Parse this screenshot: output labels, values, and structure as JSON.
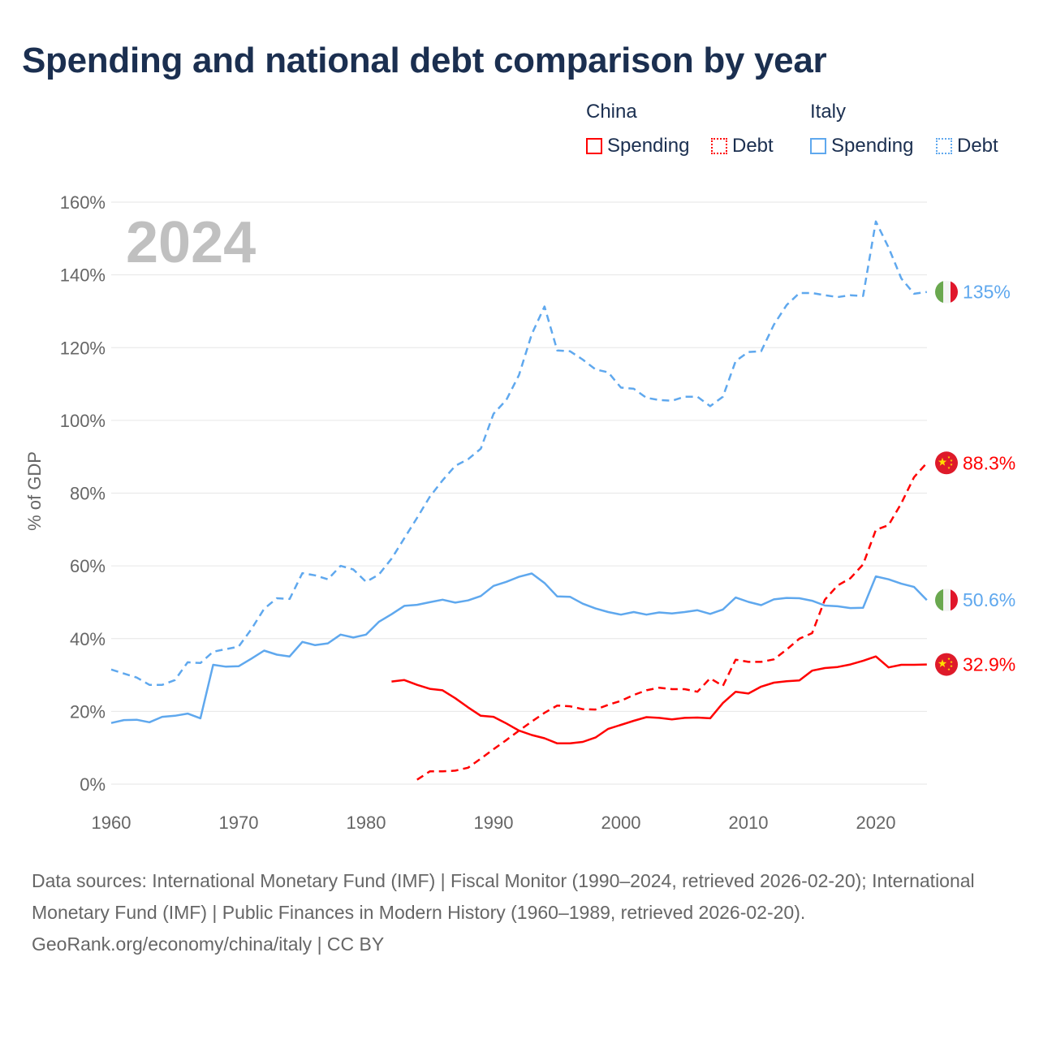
{
  "title": "Spending and national debt comparison by year",
  "legend": {
    "groups": [
      {
        "name": "China",
        "items": [
          "Spending",
          "Debt"
        ]
      },
      {
        "name": "Italy",
        "items": [
          "Spending",
          "Debt"
        ]
      }
    ]
  },
  "colors": {
    "china": "#ff0000",
    "italy": "#5fa8ee",
    "grid": "#e6e6e6",
    "axis_text": "#666666",
    "year_watermark": "#c0c0c0"
  },
  "chart_data": {
    "type": "line",
    "title": "Spending and national debt comparison by year",
    "xlabel": "",
    "ylabel": "% of GDP",
    "xlim": [
      1960,
      2024
    ],
    "ylim": [
      0,
      160
    ],
    "x_ticks": [
      1960,
      1970,
      1980,
      1990,
      2000,
      2010,
      2020
    ],
    "y_ticks": [
      "0%",
      "20%",
      "40%",
      "60%",
      "80%",
      "100%",
      "120%",
      "140%",
      "160%"
    ],
    "y_tick_values": [
      0,
      20,
      40,
      60,
      80,
      100,
      120,
      140,
      160
    ],
    "grid": true,
    "year_label": "2024",
    "series": [
      {
        "name": "China Spending",
        "country": "china",
        "style": "solid",
        "start": 1982,
        "end_label": "32.9%",
        "values": [
          28.2,
          28.6,
          27.3,
          26.2,
          25.8,
          23.6,
          21.1,
          18.8,
          18.5,
          16.7,
          14.7,
          13.5,
          12.6,
          11.2,
          11.2,
          11.6,
          12.8,
          15.2,
          16.3,
          17.4,
          18.4,
          18.2,
          17.8,
          18.2,
          18.3,
          18.1,
          22.3,
          25.4,
          24.9,
          26.8,
          27.9,
          28.3,
          28.5,
          31.2,
          31.9,
          32.2,
          32.9,
          33.9,
          35.1,
          32.1,
          32.8,
          32.8,
          32.9
        ]
      },
      {
        "name": "China Debt",
        "country": "china",
        "style": "dashed",
        "start": 1984,
        "end_label": "88.3%",
        "values": [
          1.2,
          3.5,
          3.5,
          3.7,
          4.5,
          7.0,
          9.6,
          12.1,
          14.7,
          17.2,
          19.6,
          21.6,
          21.4,
          20.6,
          20.5,
          21.8,
          22.9,
          24.5,
          25.8,
          26.5,
          26.1,
          26.1,
          25.4,
          29.1,
          27.0,
          34.2,
          33.6,
          33.6,
          34.3,
          37.0,
          40.0,
          41.5,
          50.7,
          54.6,
          56.6,
          60.4,
          69.9,
          71.2,
          77.2,
          84.4,
          88.3
        ]
      },
      {
        "name": "Italy Spending",
        "country": "italy",
        "style": "solid",
        "start": 1960,
        "end_label": "50.6%",
        "values": [
          16.8,
          17.6,
          17.7,
          17.0,
          18.5,
          18.8,
          19.4,
          18.1,
          32.8,
          32.3,
          32.4,
          34.5,
          36.7,
          35.6,
          35.1,
          39.1,
          38.2,
          38.7,
          41.1,
          40.3,
          41.1,
          44.6,
          46.7,
          49.0,
          49.3,
          50.0,
          50.7,
          49.9,
          50.5,
          51.7,
          54.5,
          55.6,
          57.0,
          57.9,
          55.3,
          51.6,
          51.5,
          49.6,
          48.3,
          47.3,
          46.6,
          47.3,
          46.6,
          47.2,
          46.9,
          47.3,
          47.8,
          46.8,
          48.0,
          51.3,
          50.1,
          49.2,
          50.8,
          51.2,
          51.1,
          50.4,
          49.1,
          48.9,
          48.4,
          48.5,
          57.1,
          56.3,
          55.1,
          54.2,
          50.6
        ]
      },
      {
        "name": "Italy Debt",
        "country": "italy",
        "style": "dashed",
        "start": 1960,
        "end_label": "135%",
        "values": [
          31.5,
          30.4,
          29.3,
          27.3,
          27.3,
          28.6,
          33.5,
          33.3,
          36.4,
          37.1,
          37.8,
          42.6,
          48.2,
          51.1,
          50.9,
          58.0,
          57.4,
          56.3,
          60.0,
          59.0,
          55.6,
          57.6,
          62.0,
          67.6,
          73.2,
          79.0,
          83.5,
          87.5,
          89.3,
          92.2,
          101.8,
          105.6,
          112.5,
          123.7,
          131.3,
          119.2,
          119.0,
          116.7,
          114.0,
          113.2,
          109.0,
          108.7,
          106.2,
          105.6,
          105.4,
          106.5,
          106.5,
          103.9,
          106.5,
          116.3,
          118.8,
          119.0,
          126.3,
          131.7,
          135.0,
          135.0,
          134.4,
          133.9,
          134.4,
          134.2,
          154.7,
          147.5,
          139.0,
          134.8,
          135.3
        ]
      }
    ]
  },
  "footer": {
    "sources": "Data sources: International Monetary Fund (IMF) | Fiscal Monitor (1990–2024, retrieved 2026-02-20); International Monetary Fund (IMF) | Public Finances in Modern History (1960–1989, retrieved 2026-02-20).",
    "credit": "GeoRank.org/economy/china/italy | CC BY"
  }
}
